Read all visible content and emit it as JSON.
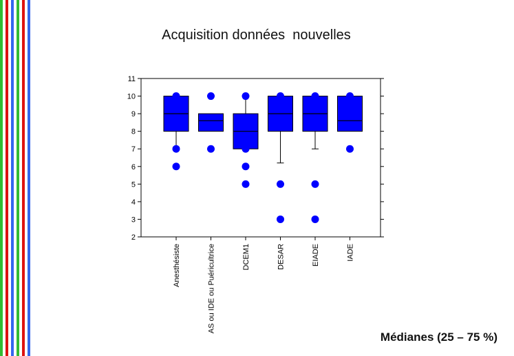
{
  "slide": {
    "title": "Acquisition données  nouvelles",
    "footnote": "Médianes (25 – 75 %)",
    "stripe_colors": [
      "#33bb33",
      "#dd1111",
      "#3366ee"
    ]
  },
  "chart_data": {
    "type": "boxplot",
    "title": "",
    "xlabel": "",
    "ylabel": "",
    "ylim": [
      2,
      11
    ],
    "yticks": [
      2,
      3,
      4,
      5,
      6,
      7,
      8,
      9,
      10,
      11
    ],
    "grid": false,
    "box_color": "#0000ff",
    "categories": [
      "Anesthésiste",
      "AS ou IDE ou Puéricultrice",
      "DCEM1",
      "DESAR",
      "EIADE",
      "IADE"
    ],
    "boxes": [
      {
        "q1": 8,
        "median": 9,
        "q3": 10,
        "whisker_low": 7.1,
        "whisker_high": 10,
        "outliers": [
          10,
          7,
          6
        ]
      },
      {
        "q1": 8,
        "median": 8.6,
        "q3": 9,
        "whisker_low": 8,
        "whisker_high": 9,
        "outliers": [
          10,
          7
        ]
      },
      {
        "q1": 7,
        "median": 8,
        "q3": 9,
        "whisker_low": 7,
        "whisker_high": 10,
        "outliers": [
          10,
          7,
          6,
          5
        ]
      },
      {
        "q1": 8,
        "median": 9,
        "q3": 10,
        "whisker_low": 6.2,
        "whisker_high": 10,
        "outliers": [
          10,
          5,
          3
        ]
      },
      {
        "q1": 8,
        "median": 9,
        "q3": 10,
        "whisker_low": 7,
        "whisker_high": 10,
        "outliers": [
          10,
          5,
          3
        ]
      },
      {
        "q1": 8,
        "median": 8.6,
        "q3": 10,
        "whisker_low": 8,
        "whisker_high": 10,
        "outliers": [
          10,
          7
        ]
      }
    ]
  }
}
